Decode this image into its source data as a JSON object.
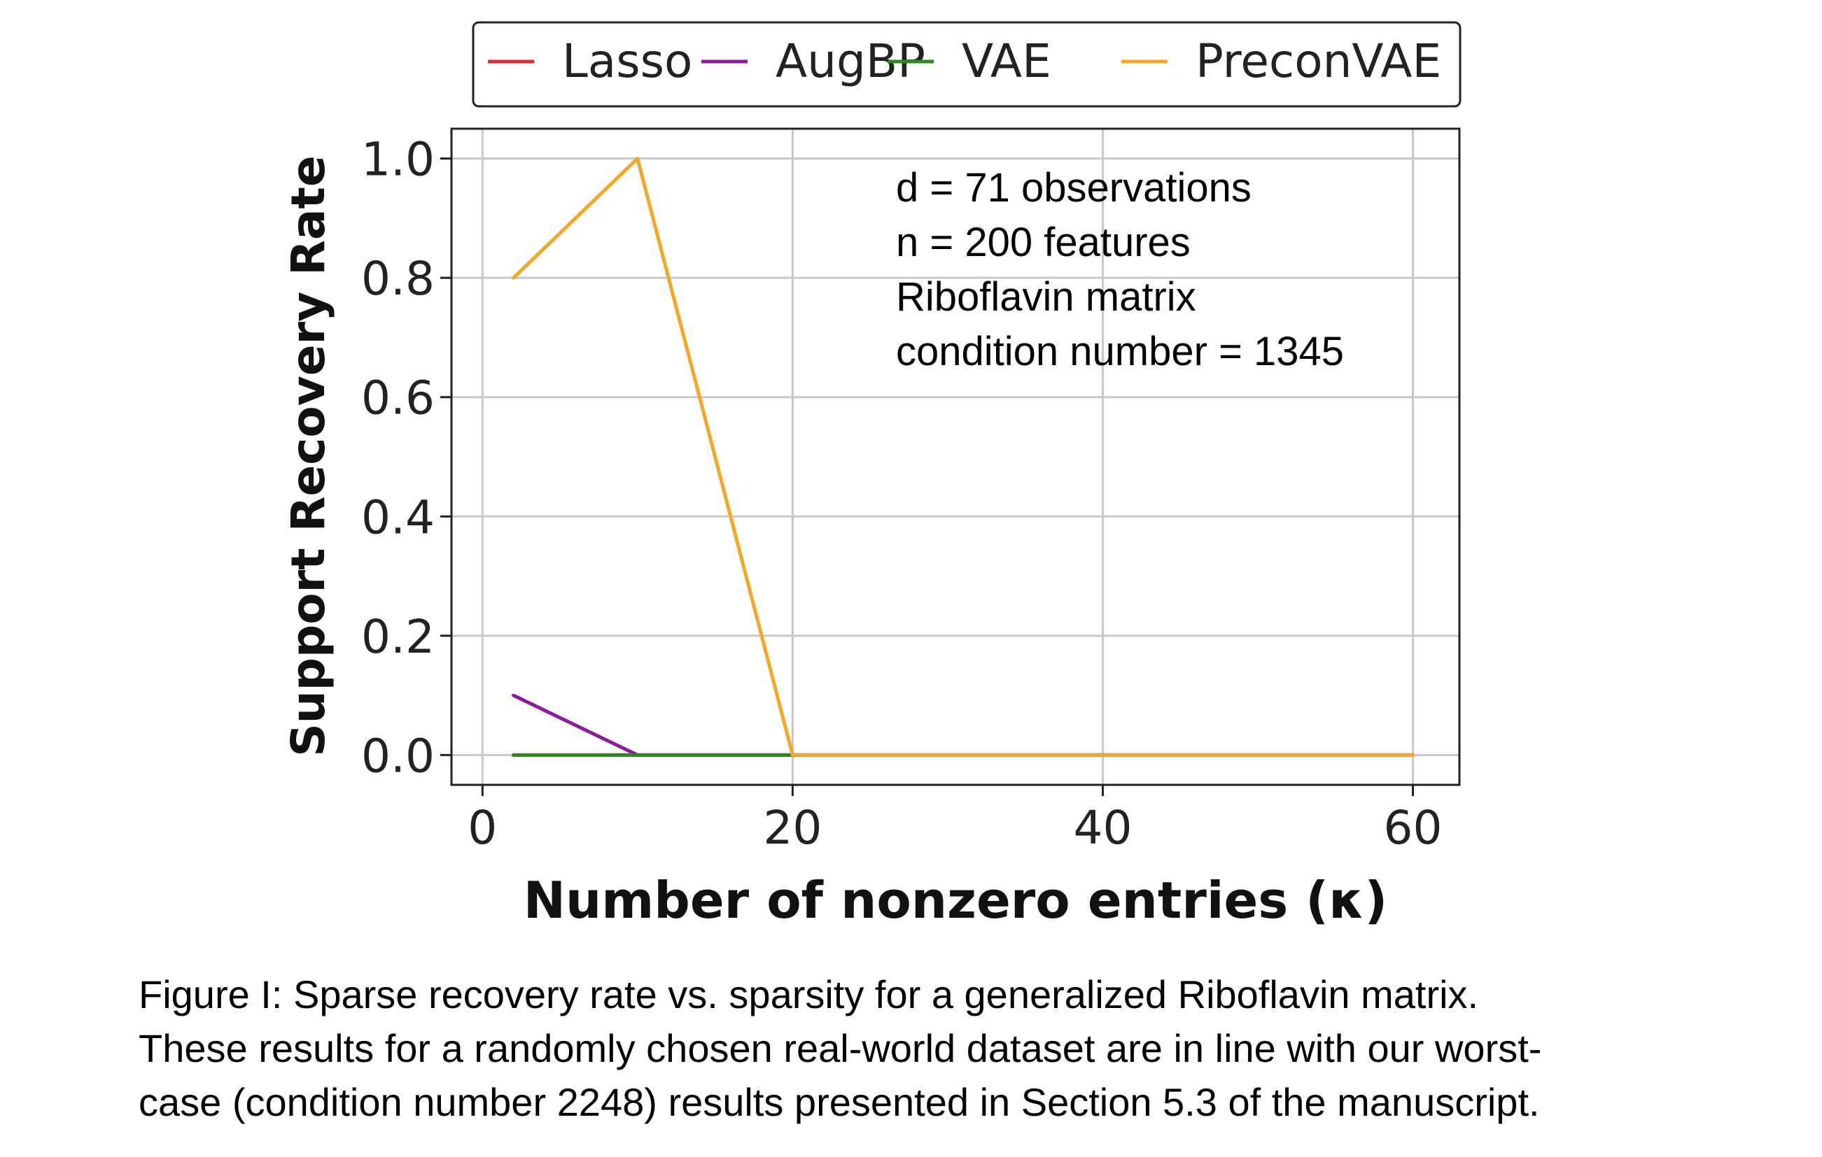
{
  "chart_data": {
    "type": "line",
    "xlabel": "Number of nonzero entries (κ)",
    "ylabel": "Support Recovery Rate",
    "xlim": [
      -2,
      63
    ],
    "ylim": [
      -0.05,
      1.05
    ],
    "xticks": [
      "0",
      "20",
      "40",
      "60"
    ],
    "yticks": [
      "0.0",
      "0.2",
      "0.4",
      "0.6",
      "0.8",
      "1.0"
    ],
    "grid": true,
    "legend_position": "top-center",
    "annotation": [
      "d = 71 observations",
      "n = 200 features",
      "Riboflavin matrix",
      "condition number = 1345"
    ],
    "series": [
      {
        "name": "Lasso",
        "color": "#e8262f",
        "x": [
          2,
          10,
          20,
          60
        ],
        "y": [
          0.0,
          0.0,
          0.0,
          0.0
        ]
      },
      {
        "name": "AugBP",
        "color": "#8b1a9c",
        "x": [
          2,
          10,
          20,
          60
        ],
        "y": [
          0.1,
          0.0,
          0.0,
          0.0
        ]
      },
      {
        "name": "VAE",
        "color": "#2a8a1e",
        "x": [
          2,
          10,
          20,
          60
        ],
        "y": [
          0.0,
          0.0,
          0.0,
          0.0
        ]
      },
      {
        "name": "PreconVAE",
        "color": "#f5a623",
        "x": [
          2,
          10,
          20,
          60
        ],
        "y": [
          0.8,
          1.0,
          0.0,
          0.0
        ]
      }
    ]
  },
  "caption": [
    "Figure I: Sparse recovery rate vs. sparsity for a generalized Riboflavin matrix.",
    "These results for a randomly chosen real-world dataset are in line with our worst-",
    "case (condition number 2248) results presented in Section 5.3 of the manuscript."
  ]
}
